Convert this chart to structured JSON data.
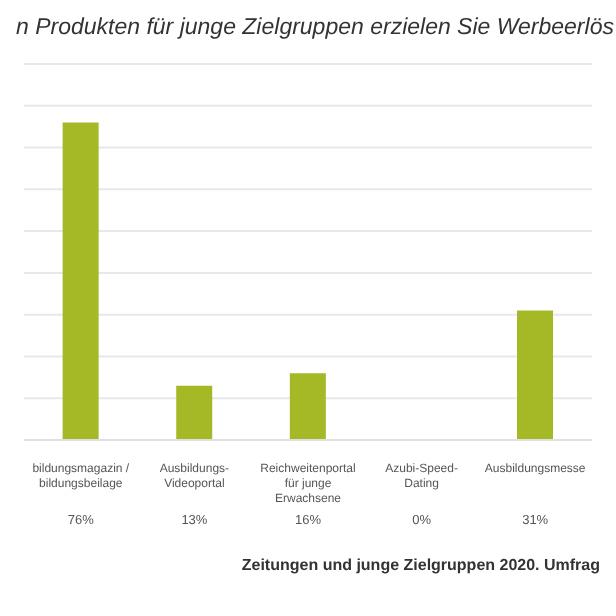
{
  "chart_data": {
    "type": "bar",
    "title": "n Produkten für junge Zielgruppen erzielen Sie Werbeerlös",
    "categories": [
      "bildungsmagazin / bildungsbeilage",
      "Ausbildungs-Videoportal",
      "Reichweitenportal für junge Erwachsene",
      "Azubi-Speed-Dating",
      "Ausbildungsmesse"
    ],
    "values": [
      76,
      13,
      16,
      0,
      31
    ],
    "value_labels": [
      "76%",
      "13%",
      "16%",
      "0%",
      "31%"
    ],
    "color": "#a5b826",
    "ylim": [
      0,
      90
    ],
    "yticks": [
      {
        "value": 0,
        "label": null
      },
      {
        "value": 10,
        "label": null
      },
      {
        "value": 20,
        "label": null
      },
      {
        "value": 30,
        "label": null
      },
      {
        "value": 40,
        "label": null
      },
      {
        "value": 50,
        "label": null
      },
      {
        "value": 60,
        "label": null
      },
      {
        "value": 70,
        "label": null
      },
      {
        "value": 80,
        "label": null
      },
      {
        "value": 90,
        "label": null
      }
    ],
    "tick_labels": "x",
    "grid": "y",
    "legend": false,
    "annotations": [
      "Zeitungen und junge Zielgruppen 2020. Umfrag"
    ]
  }
}
